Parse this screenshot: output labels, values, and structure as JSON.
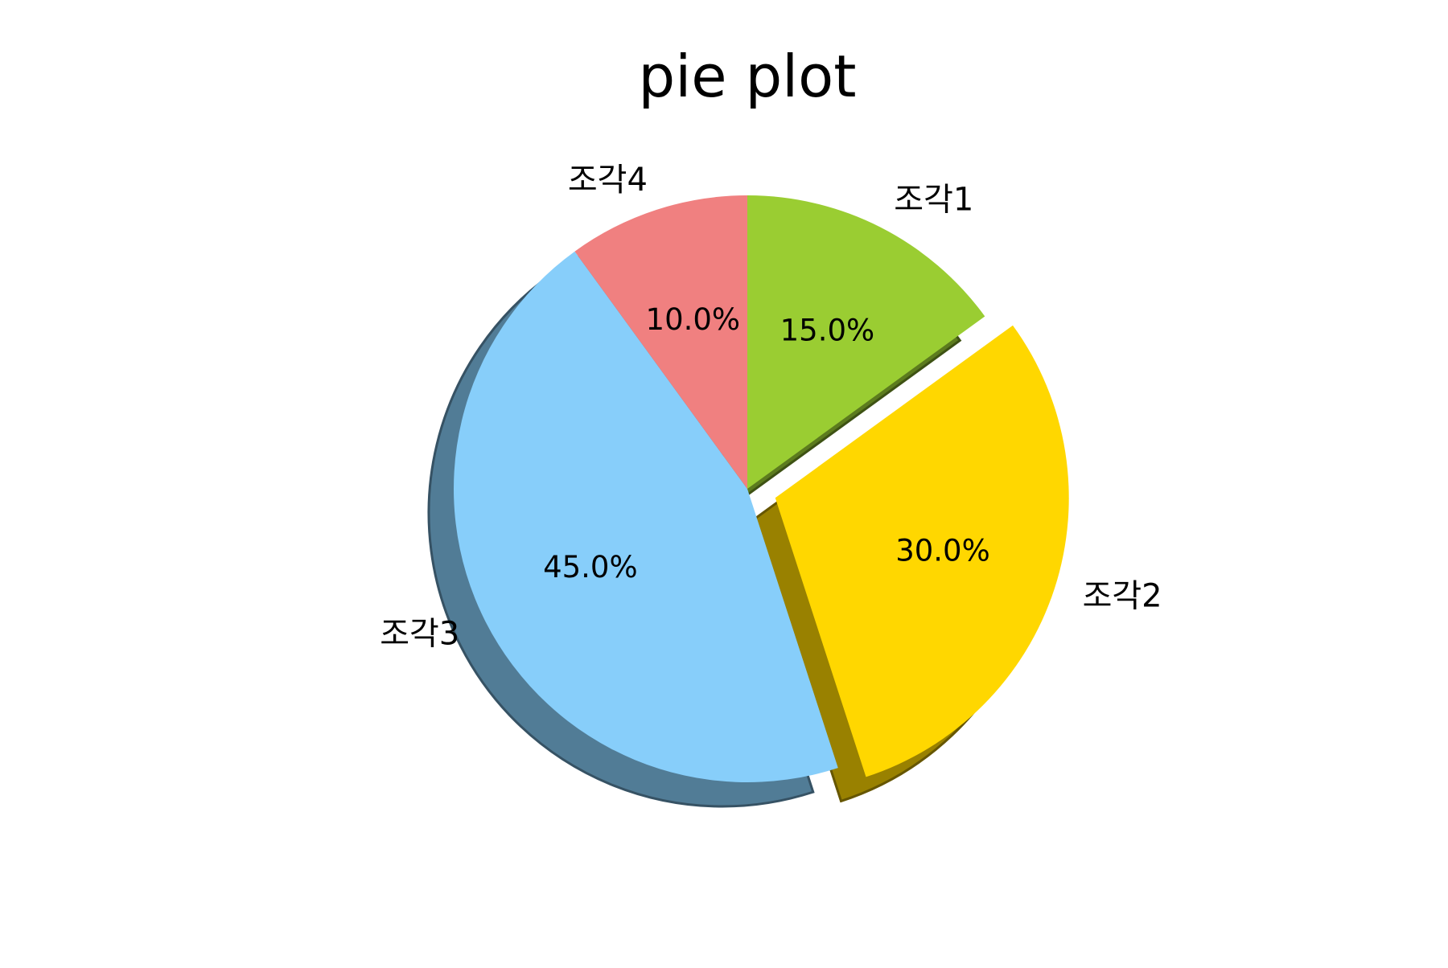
{
  "chart_data": {
    "type": "pie",
    "title": "pie plot",
    "labels": [
      "조각1",
      "조각2",
      "조각3",
      "조각4"
    ],
    "values": [
      15,
      30,
      45,
      10
    ],
    "percent_labels": [
      "15.0%",
      "30.0%",
      "45.0%",
      "10.0%"
    ],
    "colors": [
      "#9acd32",
      "#ffd700",
      "#87cefa",
      "#f08080"
    ],
    "explode": [
      0,
      0.1,
      0,
      0
    ],
    "start_angle_deg": 90,
    "direction": "clockwise",
    "shadow": true,
    "legend": false
  }
}
